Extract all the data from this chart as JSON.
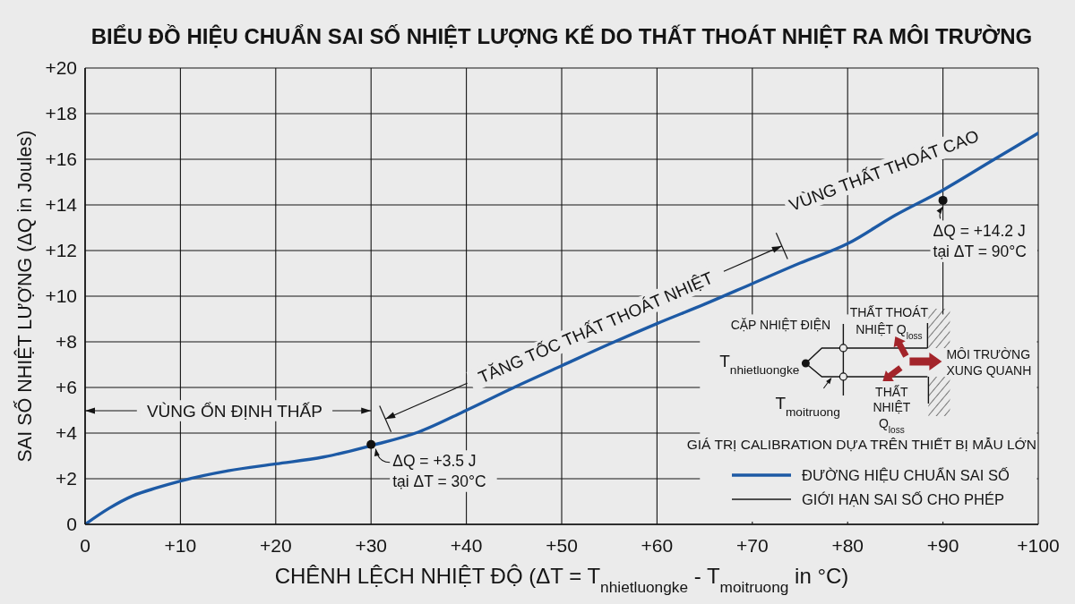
{
  "chart_data": {
    "type": "line",
    "title": "BIỂU ĐỒ HIỆU CHUẨN SAI SỐ NHIỆT LƯỢNG KẾ DO THẤT THOÁT NHIỆT RA MÔI TRƯỜNG",
    "xlabel": "CHÊNH LỆCH NHIỆT ĐỘ (ΔT = T$_{nhietluongke}$ - T$_{moitruong}$ in °C)",
    "ylabel": "SAI SỐ NHIỆT LƯỢNG (ΔQ in Joules)",
    "x": [
      0,
      2.5,
      5,
      7.5,
      10,
      15,
      20,
      25,
      30,
      35,
      40,
      45,
      50,
      55,
      60,
      65,
      70,
      75,
      80,
      85,
      90,
      95,
      100
    ],
    "series": [
      {
        "name": "ĐƯỜNG HIỆU CHUẨN SAI SỐ",
        "color": "#1d5aa5",
        "values": [
          0,
          0.7,
          1.25,
          1.6,
          1.9,
          2.35,
          2.65,
          2.95,
          3.45,
          4.05,
          5.0,
          6.0,
          6.95,
          7.9,
          8.8,
          9.65,
          10.55,
          11.45,
          12.3,
          13.55,
          14.65,
          15.9,
          17.15
        ]
      },
      {
        "name": "GIỚI HẠN SAI SỐ CHO PHÉP",
        "color": "#1a1a1a",
        "values": [
          null,
          null,
          null,
          null,
          null,
          null,
          null,
          null,
          null,
          null,
          null,
          null,
          null,
          null,
          null,
          null,
          null,
          null,
          null,
          null,
          null,
          null,
          null
        ]
      },
      {
        "type": "scatter",
        "color": "#111111",
        "x": [
          30,
          90
        ],
        "values": [
          3.5,
          14.2
        ]
      }
    ],
    "xlim": [
      0,
      100
    ],
    "ylim": [
      0,
      20
    ],
    "xticks": [
      0,
      {
        "value": 10,
        "label": "+10"
      },
      {
        "value": 20,
        "label": "+20"
      },
      {
        "value": 30,
        "label": "+30"
      },
      {
        "value": 40,
        "label": "+40"
      },
      {
        "value": 50,
        "label": "+50"
      },
      {
        "value": 60,
        "label": "+60"
      },
      {
        "value": 70,
        "label": "+70"
      },
      {
        "value": 80,
        "label": "+80"
      },
      {
        "value": 90,
        "label": "+90"
      },
      {
        "value": 100,
        "label": "+100"
      }
    ],
    "yticks": [
      0,
      {
        "value": 2,
        "label": "+2"
      },
      {
        "value": 4,
        "label": "+4"
      },
      {
        "value": 6,
        "label": "+6"
      },
      {
        "value": 8,
        "label": "+8"
      },
      {
        "value": 10,
        "label": "+10"
      },
      {
        "value": 12,
        "label": "+12"
      },
      {
        "value": 14,
        "label": "+14"
      },
      {
        "value": 16,
        "label": "+16"
      },
      {
        "value": 18,
        "label": "+18"
      },
      {
        "value": 20,
        "label": "+20"
      }
    ],
    "grid": true,
    "legend": "bottom right",
    "legend_title": "GIÁ TRỊ CALIBRATION DỰA TRÊN THIẾT BỊ MẪU LỚN",
    "annotations": [
      "VÙNG ỔN ĐỊNH THẤP",
      "TĂNG TỐC THẤT THOÁT NHIỆT",
      "VÙNG THẤT THOÁT CAO",
      {
        "text": "ΔQ = +14.2 J\ntại ΔT = 90°C",
        "x": 90,
        "y": 14.2
      },
      "CẶP NHIỆT ĐIỆN",
      "THẤT THOÁT\nNHIỆT Q$_{loss}$",
      "T$_{nhietluongke}$",
      "MÔI TRƯỜNG\nXUNG QUANH",
      "T$_{moitruong}$",
      "THẤT\nNHIỆT\nQ$_{loss}$",
      {
        "text": "ΔQ = +3.5 J\ntại ΔT = 30°C",
        "x": 30,
        "y": 3.5
      }
    ]
  }
}
